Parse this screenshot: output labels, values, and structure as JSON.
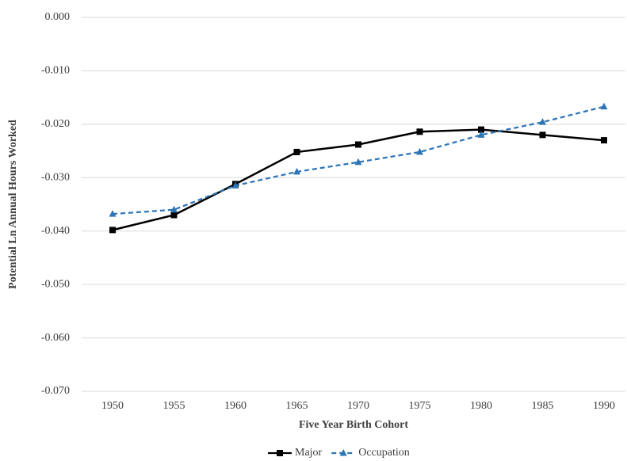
{
  "chart_data": {
    "type": "line",
    "x_label": "Five Year Birth Cohort",
    "y_label": "Potential Ln Annual Hours Worked",
    "categories": [
      "1950",
      "1955",
      "1960",
      "1965",
      "1970",
      "1975",
      "1980",
      "1985",
      "1990"
    ],
    "series": [
      {
        "name": "Major",
        "color": "#000000",
        "marker": "square",
        "dashed": false,
        "values": [
          -0.0398,
          -0.037,
          -0.0312,
          -0.0252,
          -0.0238,
          -0.0214,
          -0.021,
          -0.022,
          -0.023
        ]
      },
      {
        "name": "Occupation",
        "color": "#2e75b6",
        "marker": "triangle",
        "dashed": true,
        "values": [
          -0.0368,
          -0.036,
          -0.0315,
          -0.0289,
          -0.0271,
          -0.0252,
          -0.022,
          -0.0196,
          -0.0167
        ]
      }
    ],
    "ylim": [
      -0.07,
      0
    ],
    "yticks": [
      {
        "value": 0,
        "label": "0.000"
      },
      {
        "value": -0.01,
        "label": "-0.010"
      },
      {
        "value": -0.02,
        "label": "-0.020"
      },
      {
        "value": -0.03,
        "label": "-0.030"
      },
      {
        "value": -0.04,
        "label": "-0.040"
      },
      {
        "value": -0.05,
        "label": "-0.050"
      },
      {
        "value": -0.06,
        "label": "-0.060"
      },
      {
        "value": -0.07,
        "label": "-0.070"
      }
    ],
    "grid": true,
    "legend": "bottom"
  }
}
